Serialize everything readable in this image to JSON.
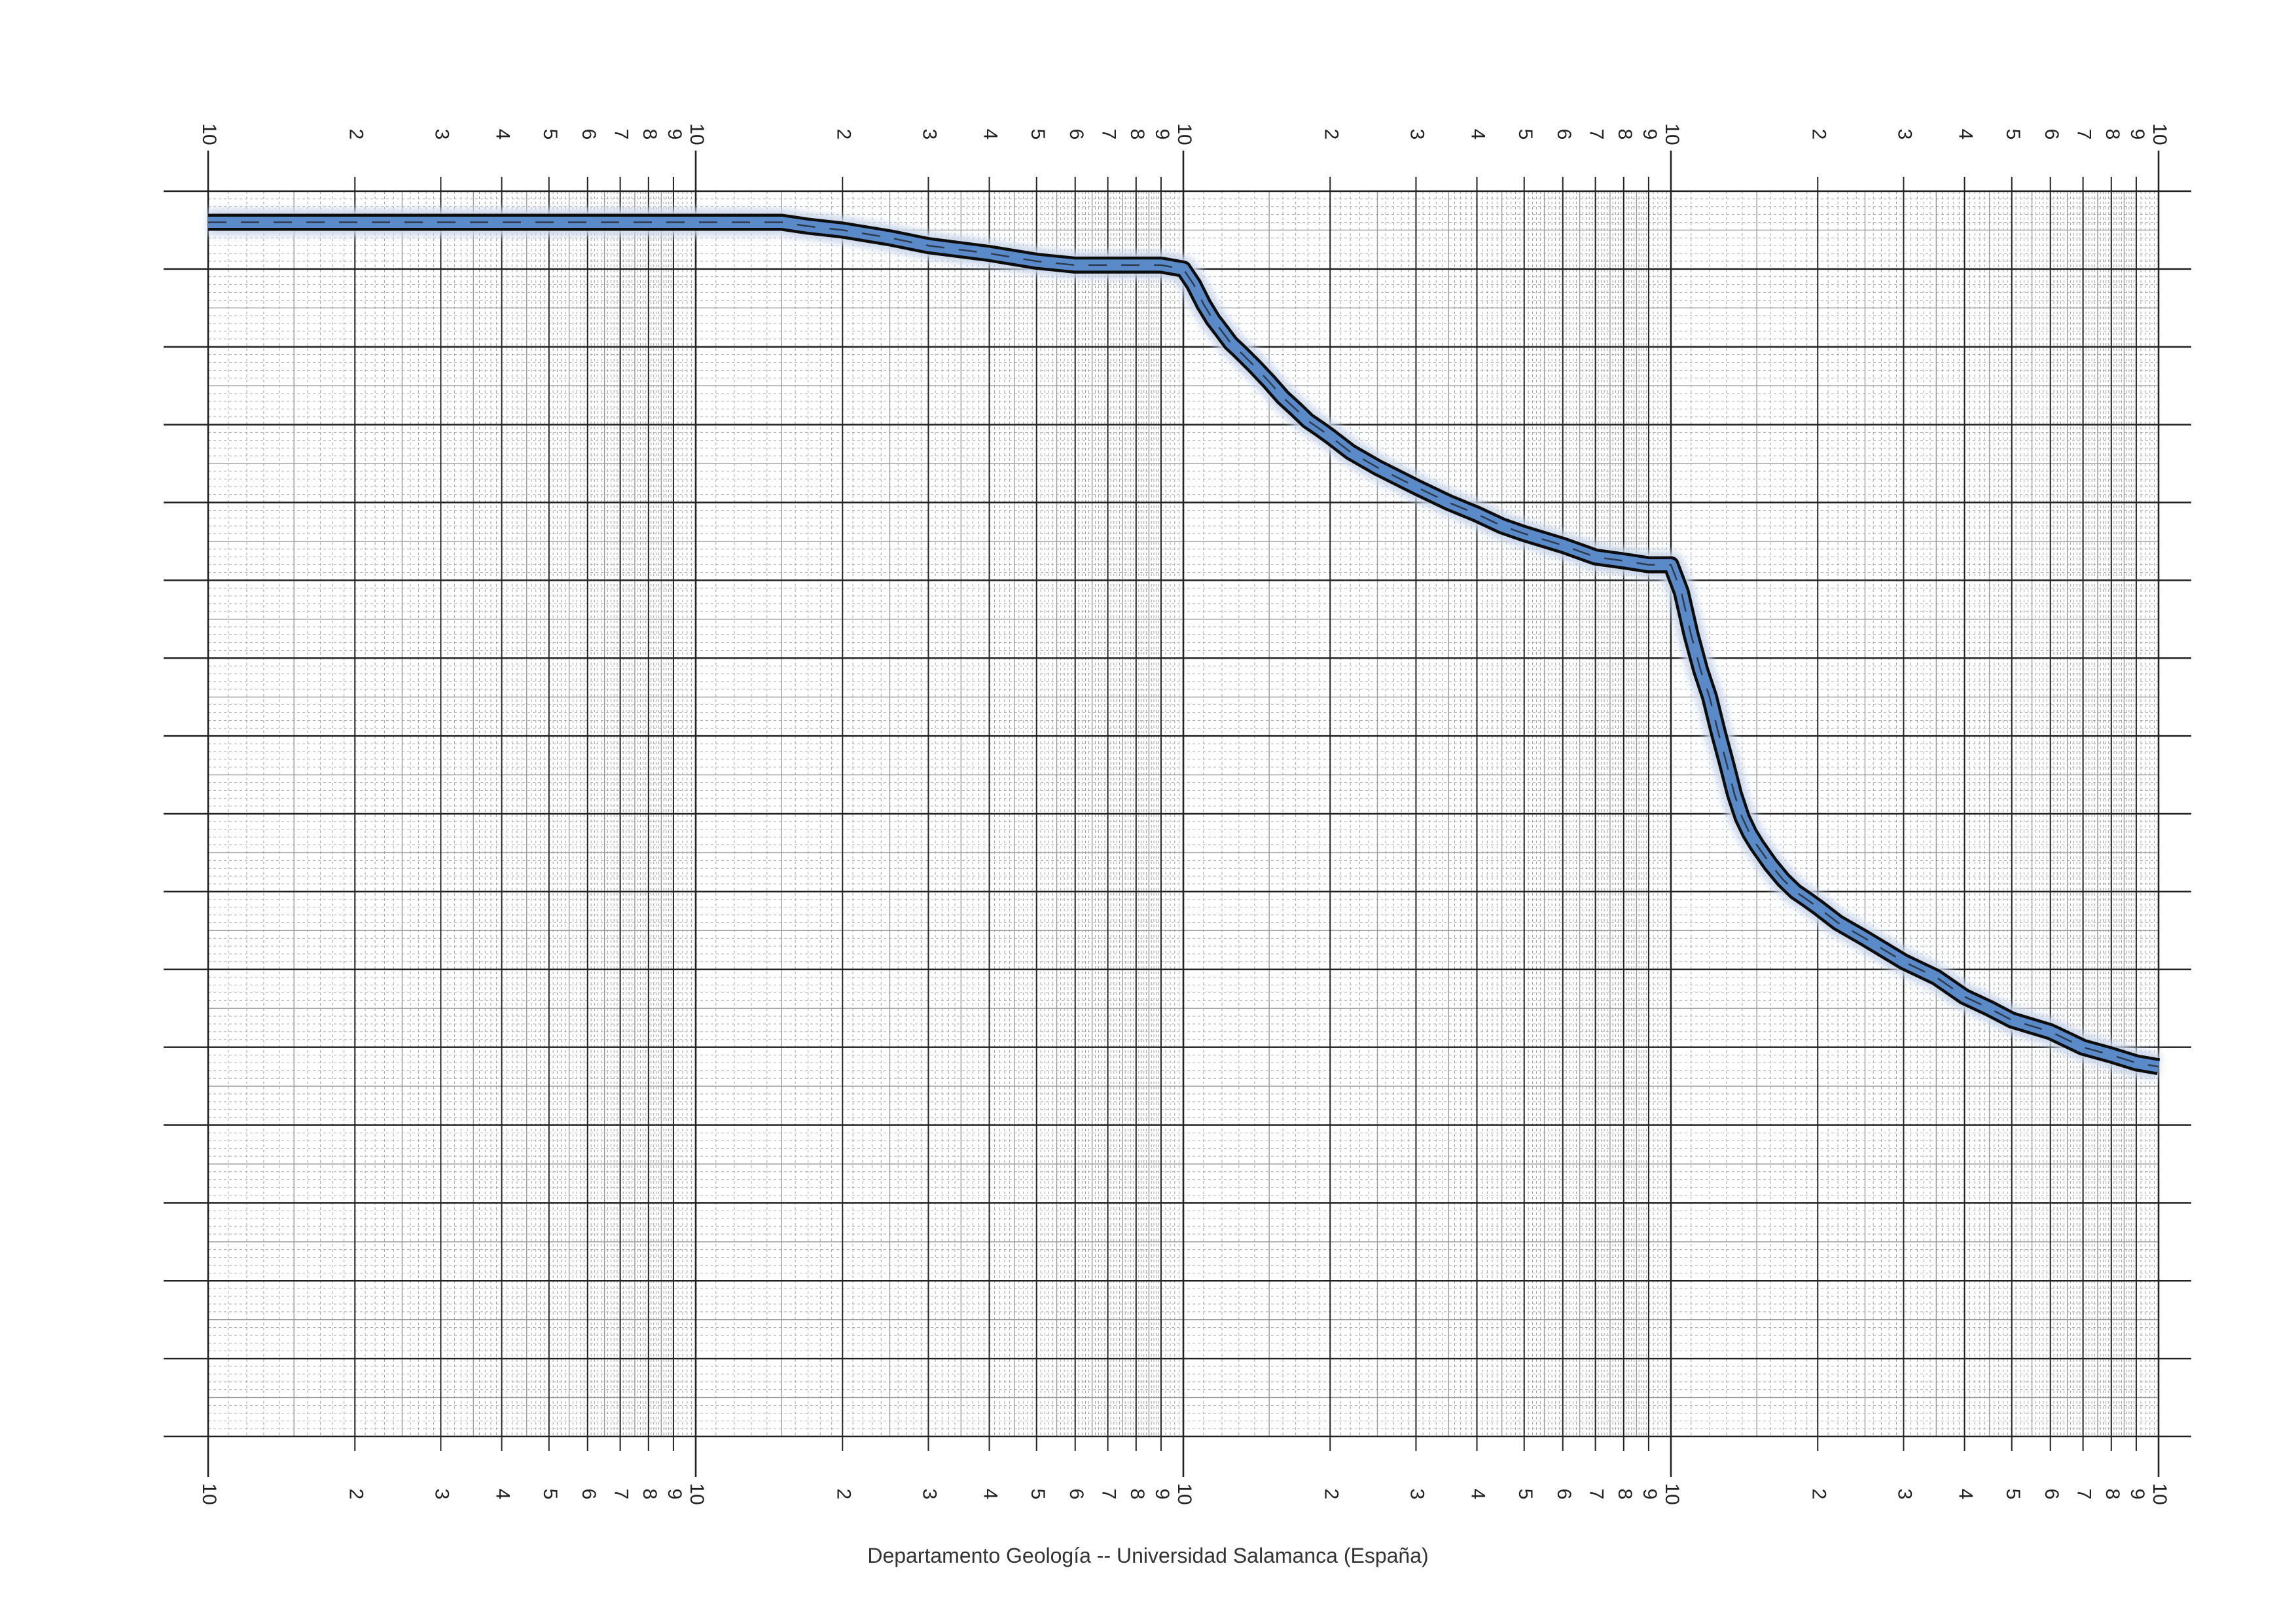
{
  "chart_data": {
    "type": "line",
    "paper": "semi-logarithmic paper, 4 log cycles (x) by 16 linear divisions (y)",
    "x_scale": "log",
    "cycles": 4,
    "y_divisions": 16,
    "tick_labels": [
      "10",
      "2",
      "3",
      "4",
      "5",
      "6",
      "7",
      "8",
      "9"
    ],
    "grid": true,
    "series": [
      {
        "x": [
          1,
          1.2,
          1.5,
          2,
          2.5,
          3,
          3.5,
          4,
          4.5,
          5,
          6,
          7,
          8,
          9,
          10,
          11,
          12,
          13,
          14,
          15,
          17,
          20,
          25,
          30,
          40,
          50,
          60,
          70,
          80,
          90,
          100,
          105,
          110,
          115,
          120,
          125,
          130,
          140,
          150,
          160,
          170,
          180,
          190,
          200,
          220,
          250,
          300,
          350,
          400,
          450,
          500,
          600,
          700,
          800,
          900,
          1000,
          1050,
          1100,
          1150,
          1200,
          1250,
          1300,
          1350,
          1400,
          1450,
          1500,
          1600,
          1700,
          1800,
          1900,
          2000,
          2200,
          2500,
          3000,
          3500,
          4000,
          4500,
          5000,
          6000,
          7000,
          8000,
          9000,
          10000
        ],
        "y": [
          15.6,
          15.6,
          15.6,
          15.6,
          15.6,
          15.6,
          15.6,
          15.6,
          15.6,
          15.6,
          15.6,
          15.6,
          15.6,
          15.6,
          15.6,
          15.6,
          15.6,
          15.6,
          15.6,
          15.6,
          15.55,
          15.5,
          15.4,
          15.3,
          15.2,
          15.1,
          15.05,
          15.05,
          15.05,
          15.05,
          15.0,
          14.8,
          14.55,
          14.35,
          14.2,
          14.05,
          13.95,
          13.75,
          13.55,
          13.35,
          13.2,
          13.05,
          12.95,
          12.85,
          12.65,
          12.45,
          12.2,
          12.0,
          11.85,
          11.7,
          11.6,
          11.45,
          11.3,
          11.25,
          11.2,
          11.2,
          10.85,
          10.3,
          9.85,
          9.5,
          9.05,
          8.65,
          8.25,
          7.95,
          7.75,
          7.6,
          7.35,
          7.15,
          7.0,
          6.9,
          6.8,
          6.6,
          6.4,
          6.1,
          5.9,
          5.65,
          5.5,
          5.35,
          5.2,
          5.0,
          4.9,
          4.8,
          4.75
        ]
      }
    ]
  },
  "footer": {
    "text": "Departamento Geología --  Universidad Salamanca (España)"
  },
  "colors": {
    "line_fill": "#5b8ac8",
    "line_edge": "#0d0d0d",
    "grid_major": "#222222",
    "grid_minor": "#9a9a9a"
  }
}
